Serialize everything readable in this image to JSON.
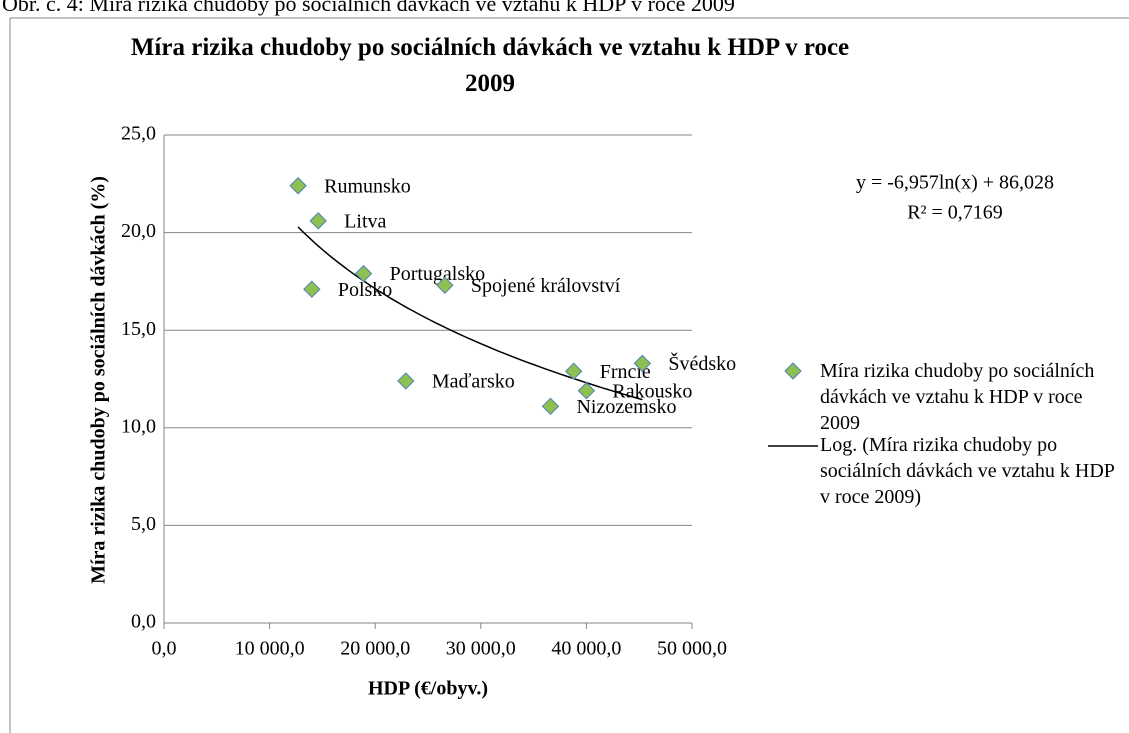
{
  "caption": "Obr. č. 4: Míra rizika chudoby po sociálních dávkách ve vztahu k HDP v roce 2009",
  "chart_data": {
    "type": "scatter",
    "title": "Míra rizika chudoby po sociálních dávkách ve vztahu k HDP v roce 2009",
    "x_label": "HDP (€/obyv.)",
    "y_label": "Míra rizika chudoby po sociálních dávkách (%)",
    "series": [
      {
        "name": "Míra rizika chudoby po sociálních dávkách ve vztahu k HDP v roce 2009",
        "color": "#8dc04f",
        "edge_color": "#4f81bd",
        "labels": [
          "Rumunsko",
          "Litva",
          "Portugalsko",
          "Polsko",
          "Spojené království",
          "Maďarsko",
          "Frncie",
          "Švédsko",
          "Rakousko",
          "Nizozemsko"
        ],
        "x": [
          12700,
          14600,
          18900,
          14000,
          26600,
          22900,
          38800,
          45300,
          40000,
          36600
        ],
        "values": [
          22.4,
          20.6,
          17.9,
          17.1,
          17.3,
          12.4,
          12.9,
          13.3,
          11.9,
          11.1
        ]
      }
    ],
    "trendline": {
      "name": "Log. (Míra rizika chudoby po sociálních dávkách ve vztahu k HDP v roce 2009)",
      "color": "#000000",
      "a": -6.957,
      "b": 86.028,
      "equation": "y = -6,957ln(x) + 86,028",
      "r2": "R² = 0,7169"
    },
    "xlim": [
      0,
      50000
    ],
    "xticks": [
      {
        "value": 0,
        "label": "0,0"
      },
      {
        "value": 10000,
        "label": "10 000,0"
      },
      {
        "value": 20000,
        "label": "20 000,0"
      },
      {
        "value": 30000,
        "label": "30 000,0"
      },
      {
        "value": 40000,
        "label": "40 000,0"
      },
      {
        "value": 50000,
        "label": "50 000,0"
      }
    ],
    "ylim": [
      0,
      25
    ],
    "yticks": [
      {
        "value": 0,
        "label": "0,0"
      },
      {
        "value": 5,
        "label": "5,0"
      },
      {
        "value": 10,
        "label": "10,0"
      },
      {
        "value": 15,
        "label": "15,0"
      },
      {
        "value": 20,
        "label": "20,0"
      },
      {
        "value": 25,
        "label": "25,0"
      }
    ],
    "grid": true
  }
}
